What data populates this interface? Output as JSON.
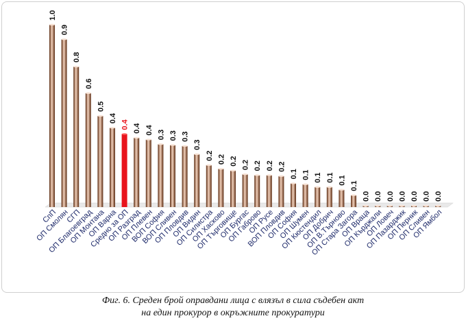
{
  "chart_data": {
    "type": "bar",
    "categories": [
      "СпП",
      "ОП Смолян",
      "СГП",
      "ОП Благоевград",
      "ОП Монтана",
      "ОП Варна",
      "Средно за ОП",
      "ОП Разград",
      "ОП Плевен",
      "ВОП София",
      "ВОП Сливен",
      "ОП Пловдив",
      "ОП Видин",
      "ОП Силистра",
      "ОП Хасково",
      "ОП Търговище",
      "ОП Бургас",
      "ОП Габрово",
      "ОП Русе",
      "ВОП Пловдив",
      "ОП София",
      "ОП Шумен",
      "ОП Кюстендил",
      "ОП Добрич",
      "ОП В.Търново",
      "ОП Стара Загора",
      "ОП Враца",
      "ОП Кърджали",
      "ОП Ловеч",
      "ОП Пазарджик",
      "ОП Перник",
      "ОП Сливен",
      "ОП Ямбол"
    ],
    "values": [
      1.0,
      0.9,
      0.8,
      0.6,
      0.5,
      0.4,
      0.4,
      0.4,
      0.4,
      0.3,
      0.3,
      0.3,
      0.3,
      0.2,
      0.2,
      0.2,
      0.2,
      0.2,
      0.2,
      0.2,
      0.1,
      0.1,
      0.1,
      0.1,
      0.1,
      0.1,
      0.0,
      0.0,
      0.0,
      0.0,
      0.0,
      0.0,
      0.0
    ],
    "bar_heights": [
      1.0,
      0.92,
      0.77,
      0.625,
      0.5,
      0.435,
      0.4,
      0.38,
      0.37,
      0.345,
      0.34,
      0.335,
      0.29,
      0.23,
      0.21,
      0.2,
      0.18,
      0.175,
      0.175,
      0.17,
      0.13,
      0.125,
      0.11,
      0.11,
      0.095,
      0.065,
      0.0,
      0.0,
      0.0,
      0.0,
      0.0,
      0.0,
      0.0
    ],
    "highlight_index": 6,
    "highlight_color": "#e8141c",
    "bar_color_dark": "#5a2a10",
    "bar_color_light": "#f3d2bd",
    "label_color": "#111111",
    "highlight_label_color": "#e8141c",
    "category_label_color": "#1e2a6a",
    "ylim": [
      0,
      1.0
    ],
    "grid": false,
    "legend": "none"
  },
  "caption": {
    "line1": "Фиг. 6. Среден брой оправдани лица с влязъл в сила съдебен акт",
    "line2": "на един прокурор в окръжните прокуратури"
  }
}
